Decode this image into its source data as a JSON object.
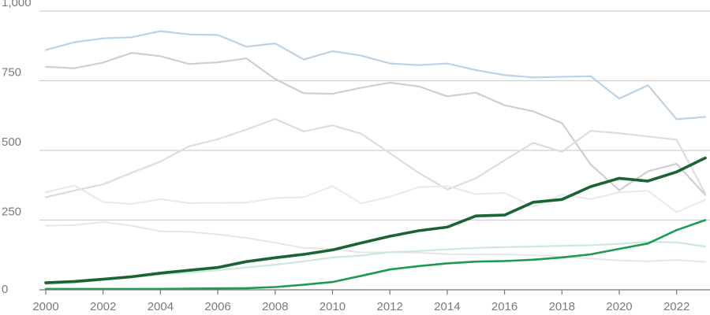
{
  "chart_data": {
    "type": "line",
    "title": "",
    "xlabel": "",
    "ylabel": "",
    "x": [
      2000,
      2001,
      2002,
      2003,
      2004,
      2005,
      2006,
      2007,
      2008,
      2009,
      2010,
      2011,
      2012,
      2013,
      2014,
      2015,
      2016,
      2017,
      2018,
      2019,
      2020,
      2021,
      2022,
      2023
    ],
    "xlim": [
      2000,
      2023
    ],
    "ylim": [
      0,
      1000
    ],
    "x_ticks": [
      "2000",
      "2002",
      "2004",
      "2006",
      "2008",
      "2010",
      "2012",
      "2014",
      "2016",
      "2018",
      "2020",
      "2022"
    ],
    "y_ticks": [
      "0",
      "250",
      "500",
      "750",
      "1,000"
    ],
    "grid": "horizontal",
    "legend": "none",
    "series": [
      {
        "color": "#bcd2e4",
        "width": 2.2,
        "values": [
          860,
          888,
          902,
          906,
          928,
          916,
          914,
          872,
          884,
          826,
          856,
          840,
          812,
          806,
          812,
          788,
          770,
          762,
          764,
          766,
          686,
          734,
          612,
          620
        ]
      },
      {
        "color": "#cfcfcf",
        "width": 2.2,
        "values": [
          800,
          795,
          815,
          850,
          838,
          810,
          816,
          830,
          756,
          705,
          703,
          725,
          743,
          730,
          694,
          707,
          662,
          640,
          598,
          450,
          357,
          425,
          452,
          340
        ]
      },
      {
        "color": "#dddddd",
        "width": 2.2,
        "values": [
          332,
          356,
          378,
          420,
          460,
          515,
          540,
          575,
          613,
          568,
          590,
          560,
          490,
          420,
          360,
          400,
          465,
          527,
          495,
          570,
          562,
          550,
          538,
          345
        ]
      },
      {
        "color": "#e1ebf4",
        "width": 2.0,
        "values": [
          350,
          374,
          315,
          308,
          325,
          311,
          312,
          313,
          329,
          332,
          372,
          310,
          334,
          368,
          372,
          343,
          348,
          298,
          342,
          325,
          350,
          355,
          278,
          323
        ]
      },
      {
        "color": "#e6e6e6",
        "width": 2.0,
        "values": [
          230,
          232,
          243,
          230,
          210,
          208,
          199,
          186,
          169,
          150,
          147,
          134,
          135,
          133,
          128,
          127,
          127,
          124,
          119,
          112,
          105,
          102,
          107,
          100
        ]
      },
      {
        "color": "#cde9d6",
        "width": 2.2,
        "values": [
          20,
          25,
          35,
          45,
          55,
          62,
          70,
          80,
          90,
          102,
          116,
          123,
          135,
          139,
          145,
          150,
          153,
          155,
          158,
          160,
          165,
          172,
          170,
          155
        ]
      },
      {
        "color": "#1f9a54",
        "width": 2.6,
        "values": [
          3,
          3,
          3,
          3,
          3,
          4,
          5,
          6,
          10,
          18,
          28,
          50,
          73,
          85,
          95,
          101,
          103,
          108,
          116,
          127,
          147,
          166,
          214,
          250
        ]
      },
      {
        "color": "#1a6433",
        "width": 3.6,
        "values": [
          25,
          30,
          38,
          47,
          60,
          70,
          80,
          101,
          115,
          127,
          143,
          168,
          192,
          212,
          225,
          265,
          268,
          314,
          324,
          370,
          400,
          390,
          423,
          473
        ]
      }
    ]
  }
}
